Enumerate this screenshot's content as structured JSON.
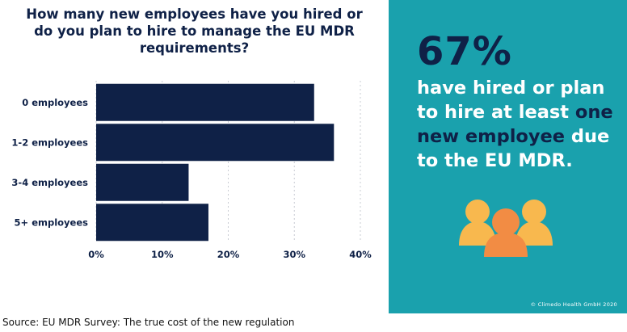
{
  "chart_data": {
    "type": "bar",
    "orientation": "horizontal",
    "title": "How many new employees have you hired or\ndo you plan to hire to manage the EU MDR\nrequirements?",
    "categories": [
      "0 employees",
      "1-2 employees",
      "3-4 employees",
      "5+ employees"
    ],
    "values": [
      33,
      36,
      14,
      17
    ],
    "unit": "%",
    "xlim": [
      0,
      40
    ],
    "xticks": [
      "0%",
      "10%",
      "20%",
      "30%",
      "40%"
    ],
    "grid": "vertical-dotted",
    "bar_color": "#0f2147"
  },
  "highlight": {
    "stat": "67%",
    "text_pre": "have hired or plan to hire at least ",
    "text_emphasis": "one new employee",
    "text_post": " due to the EU MDR.",
    "panel_color": "#1aa1ad",
    "people_icon": "people-group-icon"
  },
  "copyright": "© Climedo Health GmbH 2020",
  "source": "Source: EU MDR Survey: The true cost of the new regulation"
}
